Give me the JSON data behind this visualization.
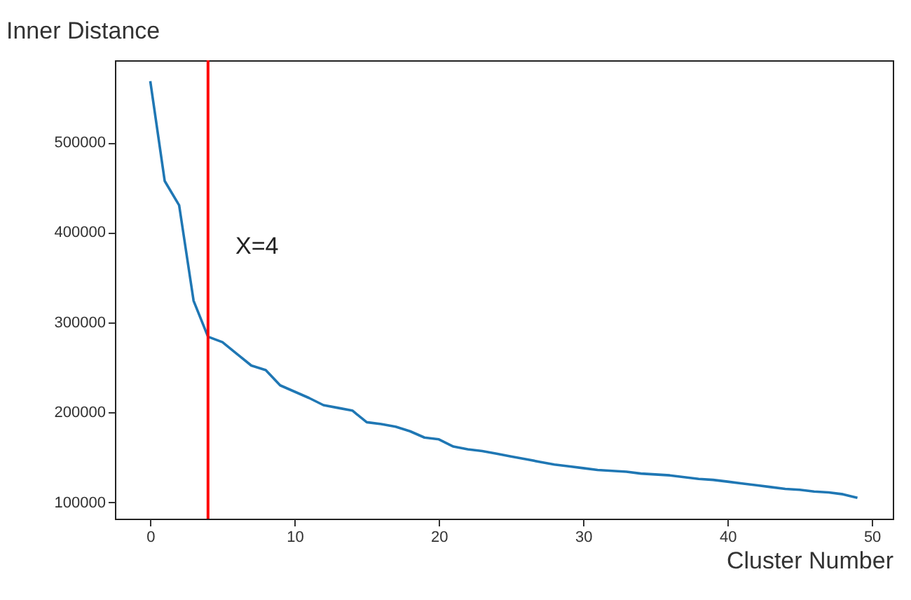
{
  "chart_data": {
    "type": "line",
    "ylabel": "Inner Distance",
    "xlabel": "Cluster Number",
    "x": [
      0,
      1,
      2,
      3,
      4,
      5,
      6,
      7,
      8,
      9,
      10,
      11,
      12,
      13,
      14,
      15,
      16,
      17,
      18,
      19,
      20,
      21,
      22,
      23,
      24,
      25,
      26,
      27,
      28,
      29,
      30,
      31,
      32,
      33,
      34,
      35,
      36,
      37,
      38,
      39,
      40,
      41,
      42,
      43,
      44,
      45,
      46,
      47,
      48,
      49
    ],
    "series": [
      {
        "color": "#1f77b4",
        "values": [
          568000,
          457000,
          430000,
          324000,
          284000,
          278000,
          265000,
          252000,
          247000,
          230000,
          223000,
          216000,
          208000,
          205000,
          202000,
          189000,
          187000,
          184000,
          179000,
          172000,
          170000,
          162000,
          159000,
          157000,
          154000,
          151000,
          148000,
          145000,
          142000,
          140000,
          138000,
          136000,
          135000,
          134000,
          132000,
          131000,
          130000,
          128000,
          126000,
          125000,
          123000,
          121000,
          119000,
          117000,
          115000,
          114000,
          112000,
          111000,
          109000,
          105000
        ]
      }
    ],
    "xlim": [
      -2.45,
      51.45
    ],
    "xticks": [
      0,
      10,
      20,
      30,
      40,
      50
    ],
    "ylim": [
      81850,
      591150
    ],
    "yticks": [
      100000,
      200000,
      300000,
      400000,
      500000
    ],
    "grid": false,
    "ref_lines": [
      {
        "axis": "x",
        "value": 4,
        "color": "#ff0000"
      }
    ],
    "annotations": [
      "X=4"
    ]
  }
}
